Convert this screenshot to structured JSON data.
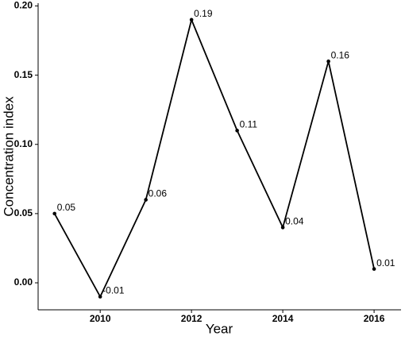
{
  "chart_data": {
    "type": "line",
    "x_label": "Year",
    "y_label": "Concentration index",
    "x": [
      2009,
      2010,
      2011,
      2012,
      2013,
      2014,
      2015,
      2016
    ],
    "series": [
      {
        "color": "#000000",
        "values": [
          0.05,
          -0.01,
          0.06,
          0.19,
          0.11,
          0.04,
          0.16,
          0.01
        ]
      }
    ],
    "xlim": [
      2008.64,
      2016.59
    ],
    "xticks": [
      2010,
      2012,
      2014,
      2016
    ],
    "ylim": [
      -0.0195,
      0.202
    ],
    "yticks": [
      {
        "value": 0,
        "label": "0.00"
      },
      {
        "value": 0.05,
        "label": "0.05"
      },
      {
        "value": 0.1,
        "label": "0.10"
      },
      {
        "value": 0.15,
        "label": "0.15"
      },
      {
        "value": 0.2,
        "label": "0.20"
      }
    ],
    "grid": false
  }
}
